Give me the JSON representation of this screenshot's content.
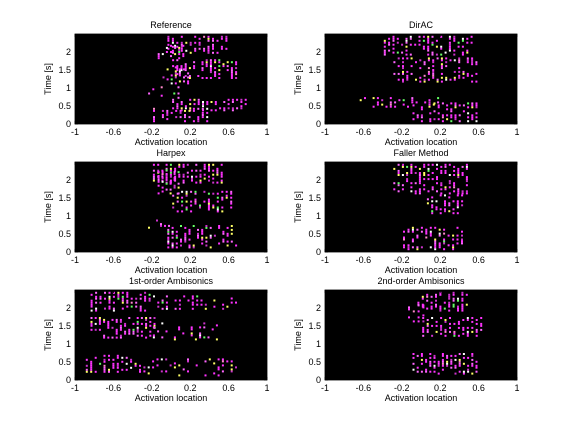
{
  "chart_data": [
    {
      "type": "heatmap",
      "title": "Reference",
      "xlabel": "Activation location",
      "ylabel": "Time [s]",
      "xlim": [
        -1,
        1
      ],
      "ylim": [
        0,
        2.5
      ],
      "xticks": [
        "-1",
        "-0.6",
        "-0.2",
        "0.2",
        "0.6",
        "1"
      ],
      "yticks": [
        "0",
        "0.5",
        "1",
        "1.5",
        "2"
      ],
      "clusters": [
        {
          "x": [
            -0.05,
            0.6
          ],
          "y": [
            1.95,
            2.45
          ],
          "density": 0.85
        },
        {
          "x": [
            -0.15,
            0.15
          ],
          "y": [
            1.8,
            2.2
          ],
          "density": 0.8
        },
        {
          "x": [
            0.0,
            0.7
          ],
          "y": [
            1.25,
            1.8
          ],
          "density": 0.8
        },
        {
          "x": [
            -0.1,
            0.2
          ],
          "y": [
            1.1,
            1.6
          ],
          "density": 0.6
        },
        {
          "x": [
            -0.25,
            0.1
          ],
          "y": [
            0.7,
            1.05
          ],
          "density": 0.45
        },
        {
          "x": [
            0.0,
            0.8
          ],
          "y": [
            0.35,
            0.7
          ],
          "density": 0.8
        },
        {
          "x": [
            -0.2,
            0.4
          ],
          "y": [
            0.05,
            0.45
          ],
          "density": 0.7
        }
      ]
    },
    {
      "type": "heatmap",
      "title": "DirAC",
      "xlabel": "Activation location",
      "ylabel": "Time [s]",
      "xlim": [
        -1,
        1
      ],
      "ylim": [
        0,
        2.5
      ],
      "xticks": [
        "-1",
        "-0.6",
        "-0.2",
        "0.2",
        "0.6",
        "1"
      ],
      "yticks": [
        "0",
        "0.5",
        "1",
        "1.5",
        "2"
      ],
      "clusters": [
        {
          "x": [
            -0.4,
            0.55
          ],
          "y": [
            1.9,
            2.45
          ],
          "density": 0.75
        },
        {
          "x": [
            -0.3,
            0.6
          ],
          "y": [
            1.15,
            1.85
          ],
          "density": 0.6
        },
        {
          "x": [
            -0.65,
            0.2
          ],
          "y": [
            0.45,
            0.75
          ],
          "density": 0.6
        },
        {
          "x": [
            -0.1,
            0.6
          ],
          "y": [
            0.05,
            0.6
          ],
          "density": 0.7
        }
      ]
    },
    {
      "type": "heatmap",
      "title": "Harpex",
      "xlabel": "Activation location",
      "ylabel": "Time [s]",
      "xlim": [
        -1,
        1
      ],
      "ylim": [
        0,
        2.5
      ],
      "xticks": [
        "-1",
        "-0.6",
        "-0.2",
        "0.2",
        "0.6",
        "1"
      ],
      "yticks": [
        "0",
        "0.5",
        "1",
        "1.5",
        "2"
      ],
      "clusters": [
        {
          "x": [
            -0.2,
            0.55
          ],
          "y": [
            1.9,
            2.45
          ],
          "density": 0.85
        },
        {
          "x": [
            -0.15,
            0.1
          ],
          "y": [
            1.6,
            2.3
          ],
          "density": 0.8
        },
        {
          "x": [
            0.0,
            0.65
          ],
          "y": [
            1.1,
            1.7
          ],
          "density": 0.75
        },
        {
          "x": [
            -0.05,
            0.7
          ],
          "y": [
            0.1,
            0.75
          ],
          "density": 0.75
        },
        {
          "x": [
            -0.25,
            0.0
          ],
          "y": [
            0.65,
            0.9
          ],
          "density": 0.4
        }
      ]
    },
    {
      "type": "heatmap",
      "title": "Faller Method",
      "xlabel": "Activation location",
      "ylabel": "Time [s]",
      "xlim": [
        -1,
        1
      ],
      "ylim": [
        0,
        2.5
      ],
      "xticks": [
        "-1",
        "-0.6",
        "-0.2",
        "0.2",
        "0.6",
        "1"
      ],
      "yticks": [
        "0",
        "0.5",
        "1",
        "1.5",
        "2"
      ],
      "clusters": [
        {
          "x": [
            -0.3,
            0.5
          ],
          "y": [
            1.6,
            2.45
          ],
          "density": 0.7
        },
        {
          "x": [
            0.05,
            0.45
          ],
          "y": [
            1.05,
            1.6
          ],
          "density": 0.8
        },
        {
          "x": [
            -0.2,
            0.45
          ],
          "y": [
            0.05,
            0.7
          ],
          "density": 0.75
        }
      ]
    },
    {
      "type": "heatmap",
      "title": "1st-order Ambisonics",
      "xlabel": "Activation location",
      "ylabel": "Time [s]",
      "xlim": [
        -1,
        1
      ],
      "ylim": [
        0,
        2.5
      ],
      "xticks": [
        "-1",
        "-0.6",
        "-0.2",
        "0.2",
        "0.6",
        "1"
      ],
      "yticks": [
        "0",
        "0.5",
        "1",
        "1.5",
        "2"
      ],
      "clusters": [
        {
          "x": [
            -0.85,
            -0.2
          ],
          "y": [
            1.9,
            2.45
          ],
          "density": 0.8
        },
        {
          "x": [
            -0.2,
            0.7
          ],
          "y": [
            1.95,
            2.35
          ],
          "density": 0.35
        },
        {
          "x": [
            -0.85,
            -0.15
          ],
          "y": [
            1.15,
            1.75
          ],
          "density": 0.75
        },
        {
          "x": [
            -0.2,
            0.5
          ],
          "y": [
            1.1,
            1.6
          ],
          "density": 0.3
        },
        {
          "x": [
            -0.9,
            -0.3
          ],
          "y": [
            0.2,
            0.7
          ],
          "density": 0.75
        },
        {
          "x": [
            -0.3,
            0.7
          ],
          "y": [
            0.1,
            0.6
          ],
          "density": 0.3
        }
      ]
    },
    {
      "type": "heatmap",
      "title": "2nd-order Ambisonics",
      "xlabel": "Activation location",
      "ylabel": "Time [s]",
      "xlim": [
        -1,
        1
      ],
      "ylim": [
        0,
        2.5
      ],
      "xticks": [
        "-1",
        "-0.6",
        "-0.2",
        "0.2",
        "0.6",
        "1"
      ],
      "yticks": [
        "0",
        "0.5",
        "1",
        "1.5",
        "2"
      ],
      "clusters": [
        {
          "x": [
            -0.05,
            0.5
          ],
          "y": [
            1.9,
            2.45
          ],
          "density": 0.85
        },
        {
          "x": [
            -0.15,
            0.05
          ],
          "y": [
            1.6,
            2.1
          ],
          "density": 0.6
        },
        {
          "x": [
            0.0,
            0.65
          ],
          "y": [
            1.2,
            1.75
          ],
          "density": 0.8
        },
        {
          "x": [
            -0.1,
            0.6
          ],
          "y": [
            0.15,
            0.75
          ],
          "density": 0.75
        }
      ]
    }
  ],
  "colors": {
    "background": "#000000",
    "dots": [
      "#ff33ff",
      "#ff66ff",
      "#cc33cc",
      "#ffff66",
      "#ffffff",
      "#66ff66",
      "#ff88cc"
    ]
  }
}
